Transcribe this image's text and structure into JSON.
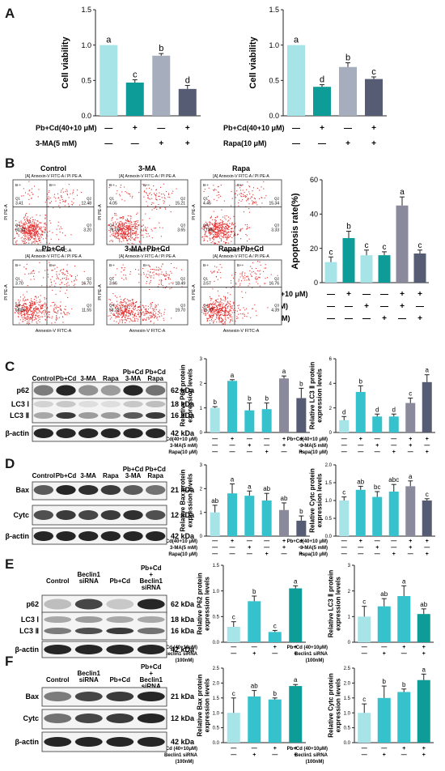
{
  "panels": {
    "A": "A",
    "B": "B",
    "C": "C",
    "D": "D",
    "E": "E",
    "F": "F"
  },
  "colors": {
    "ctrl": "#a6e4e8",
    "teal": "#0d9c97",
    "grey": "#a6adbd",
    "slate": "#565c73",
    "mid": "#35c2cc",
    "purple": "#8a8a9c",
    "scatter": "#e53030",
    "blot_band": "#1a1a1a"
  },
  "treatments": {
    "pbcd": "Pb+Cd(40+10 μM)",
    "ma3": "3-MA(5 mM)",
    "rapa": "Rapa(10 μM)",
    "pbcd_small": "Pb+Cd(40+10 μM)",
    "ma3_small": "3-MA(5 mM)",
    "rapa_small": "Rapa(10 μM)",
    "pbcd_e": "Pb+Cd (40+10μM)",
    "beclin_e": "Beclin1 siRNA",
    "beclin_e_conc": "(100nM)"
  },
  "signs": {
    "plus": "+",
    "minus": "—"
  },
  "flow": {
    "xlabel": "Annexin-V FITC-A",
    "ylabel": "PI PE-A",
    "subtitle": "[A] Annexin-V FITC-A / PI PE-A",
    "quad_labels": {
      "q1": "Q1",
      "q2": "Q2",
      "q3": "Q3",
      "q4": "Q4",
      "bm_plus": "B-+",
      "bp_plus": "B++"
    },
    "plots": [
      {
        "title": "Control",
        "q1": "3.41",
        "q2": "12.48",
        "q3": "3.20",
        "q4": "80.91"
      },
      {
        "title": "3-MA",
        "q1": "4.05",
        "q2": "15.21",
        "q3": "3.65",
        "q4": "76.09"
      },
      {
        "title": "Rapa",
        "q1": "4.46",
        "q2": "15.34",
        "q3": "3.33",
        "q4": "77.88"
      },
      {
        "title": "Pb+Cd",
        "q1": "3.70",
        "q2": "16.70",
        "q3": "11.55",
        "q4": "68.06"
      },
      {
        "title": "3-MA+Pb+Cd",
        "q1": "3.66",
        "q2": "18.49",
        "q3": "19.70",
        "q4": "58.23"
      },
      {
        "title": "Rapa+Pb+Cd",
        "q1": "3.57",
        "q2": "16.76",
        "q3": "4.39",
        "q4": "75.27"
      }
    ]
  },
  "blots": {
    "C": {
      "lanes": [
        "Control",
        "Pb+Cd",
        "3-MA",
        "Rapa",
        "Pb+Cd\n3-MA",
        "Pb+Cd\nRapa"
      ],
      "rows": [
        {
          "label": "p62",
          "kda": "62 kDa"
        },
        {
          "label": "LC3 Ⅰ",
          "kda": "18 kDa"
        },
        {
          "label": "LC3 Ⅱ",
          "kda": "16 kDa"
        },
        {
          "label": "β-actin",
          "kda": "42 kDa"
        }
      ]
    },
    "D": {
      "lanes": [
        "Control",
        "Pb+Cd",
        "3-MA",
        "Rapa",
        "Pb+Cd\n3-MA",
        "Pb+Cd\nRapa"
      ],
      "rows": [
        {
          "label": "Bax",
          "kda": "21 kDa"
        },
        {
          "label": "Cytc",
          "kda": "12 kDa"
        },
        {
          "label": "β-actin",
          "kda": "42 kDa"
        }
      ]
    },
    "E": {
      "lanes": [
        "Control",
        "Beclin1\nsiRNA",
        "Pb+Cd",
        "Pb+Cd\n+\nBeclin1\nsiRNA"
      ],
      "rows": [
        {
          "label": "p62",
          "kda": "62 kDa"
        },
        {
          "label": "LC3 Ⅰ",
          "kda": "18 kDa"
        },
        {
          "label": "LC3 Ⅱ",
          "kda": "16 kDa"
        },
        {
          "label": "β-actin",
          "kda": "42 kDa"
        }
      ]
    },
    "F": {
      "lanes": [
        "Control",
        "Beclin1\nsiRNA",
        "Pb+Cd",
        "Pb+Cd\n+\nBeclin1\nsiRNA"
      ],
      "rows": [
        {
          "label": "Bax",
          "kda": "21 kDa"
        },
        {
          "label": "Cytc",
          "kda": "12 kDa"
        },
        {
          "label": "β-actin",
          "kda": "42 kDa"
        }
      ]
    }
  },
  "chart_data": [
    {
      "id": "A1",
      "type": "bar",
      "ylabel": "Cell viability",
      "ylim": [
        0,
        1.5
      ],
      "ticks": [
        0,
        0.5,
        1.0,
        1.5
      ],
      "values": [
        1.0,
        0.47,
        0.85,
        0.38
      ],
      "errors": [
        0,
        0.04,
        0.03,
        0.05
      ],
      "letters": [
        "a",
        "c",
        "b",
        "d"
      ],
      "colors": [
        "ctrl",
        "teal",
        "grey",
        "slate"
      ],
      "treat_rows": [
        {
          "label": "pbcd",
          "signs": [
            "—",
            "+",
            "—",
            "+"
          ]
        },
        {
          "label": "ma3",
          "signs": [
            "—",
            "—",
            "+",
            "+"
          ]
        }
      ]
    },
    {
      "id": "A2",
      "type": "bar",
      "ylabel": "Cell viability",
      "ylim": [
        0,
        1.5
      ],
      "ticks": [
        0,
        0.5,
        1.0,
        1.5
      ],
      "values": [
        1.0,
        0.41,
        0.69,
        0.52
      ],
      "errors": [
        0,
        0.03,
        0.06,
        0.03
      ],
      "letters": [
        "a",
        "d",
        "b",
        "c"
      ],
      "colors": [
        "ctrl",
        "teal",
        "grey",
        "slate"
      ],
      "treat_rows": [
        {
          "label": "pbcd",
          "signs": [
            "—",
            "+",
            "—",
            "+"
          ]
        },
        {
          "label": "rapa",
          "signs": [
            "—",
            "—",
            "+",
            "+"
          ]
        }
      ]
    },
    {
      "id": "B",
      "type": "bar",
      "ylabel": "Apoptosis rate(%)",
      "ylim": [
        0,
        60
      ],
      "ticks": [
        0,
        20,
        40,
        60
      ],
      "values": [
        12,
        26,
        16,
        16,
        45,
        17
      ],
      "errors": [
        3,
        4,
        3,
        2,
        5,
        2
      ],
      "letters": [
        "c",
        "b",
        "c",
        "c",
        "a",
        "c"
      ],
      "colors": [
        "ctrl",
        "teal",
        "ctrl",
        "teal",
        "purple",
        "slate"
      ],
      "treat_rows": [
        {
          "label": "pbcd",
          "signs": [
            "—",
            "+",
            "—",
            "—",
            "+",
            "+"
          ]
        },
        {
          "label": "ma3",
          "signs": [
            "—",
            "—",
            "+",
            "—",
            "+",
            "—"
          ]
        },
        {
          "label": "rapa",
          "signs": [
            "—",
            "—",
            "—",
            "+",
            "—",
            "+"
          ]
        }
      ]
    },
    {
      "id": "C1",
      "type": "bar",
      "ylabel": "Relative P62 protein\nexpression levels",
      "ylim": [
        0,
        3
      ],
      "ticks": [
        0,
        1,
        2,
        3
      ],
      "values": [
        1.0,
        2.1,
        0.9,
        0.95,
        2.2,
        1.4
      ],
      "errors": [
        0.05,
        0.05,
        0.3,
        0.25,
        0.1,
        0.4
      ],
      "letters": [
        "b",
        "a",
        "b",
        "b",
        "a",
        "b"
      ],
      "colors": [
        "ctrl",
        "mid",
        "mid",
        "mid",
        "purple",
        "slate"
      ],
      "treat_rows": [
        {
          "label": "pbcd_small",
          "signs": [
            "—",
            "+",
            "—",
            "—",
            "+",
            "+"
          ]
        },
        {
          "label": "ma3_small",
          "signs": [
            "—",
            "—",
            "+",
            "—",
            "+",
            "—"
          ]
        },
        {
          "label": "rapa_small",
          "signs": [
            "—",
            "—",
            "—",
            "+",
            "—",
            "+"
          ]
        }
      ]
    },
    {
      "id": "C2",
      "type": "bar",
      "ylabel": "Relative LC3 Ⅱ protein\nexpression levels",
      "ylim": [
        0,
        6
      ],
      "ticks": [
        0,
        2,
        4,
        6
      ],
      "values": [
        1.0,
        3.3,
        1.3,
        1.3,
        2.4,
        4.1
      ],
      "errors": [
        0.3,
        0.5,
        0.2,
        0.2,
        0.4,
        0.6
      ],
      "letters": [
        "d",
        "b",
        "d",
        "d",
        "c",
        "a"
      ],
      "colors": [
        "ctrl",
        "mid",
        "mid",
        "mid",
        "purple",
        "slate"
      ],
      "treat_rows": [
        {
          "label": "pbcd_small",
          "signs": [
            "—",
            "+",
            "—",
            "—",
            "+",
            "+"
          ]
        },
        {
          "label": "ma3_small",
          "signs": [
            "—",
            "—",
            "+",
            "—",
            "+",
            "—"
          ]
        },
        {
          "label": "rapa_small",
          "signs": [
            "—",
            "—",
            "—",
            "+",
            "—",
            "+"
          ]
        }
      ]
    },
    {
      "id": "D1",
      "type": "bar",
      "ylabel": "Relative Bax protein\nexpression levels",
      "ylim": [
        0,
        3
      ],
      "ticks": [
        0,
        1,
        2,
        3
      ],
      "values": [
        1.0,
        1.8,
        1.7,
        1.5,
        1.1,
        0.65
      ],
      "errors": [
        0.3,
        0.4,
        0.2,
        0.3,
        0.3,
        0.2
      ],
      "letters": [
        "ab",
        "a",
        "a",
        "ab",
        "ab",
        "b"
      ],
      "colors": [
        "ctrl",
        "mid",
        "mid",
        "mid",
        "purple",
        "slate"
      ],
      "treat_rows": [
        {
          "label": "pbcd_small",
          "signs": [
            "—",
            "+",
            "—",
            "—",
            "+",
            "+"
          ]
        },
        {
          "label": "ma3_small",
          "signs": [
            "—",
            "—",
            "+",
            "—",
            "+",
            "—"
          ]
        },
        {
          "label": "rapa_small",
          "signs": [
            "—",
            "—",
            "—",
            "+",
            "—",
            "+"
          ]
        }
      ]
    },
    {
      "id": "D2",
      "type": "bar",
      "ylabel": "Relative Cytc protein\nexpression levels",
      "ylim": [
        0,
        2
      ],
      "ticks": [
        0,
        0.5,
        1.0,
        1.5,
        2.0
      ],
      "values": [
        1.0,
        1.3,
        1.1,
        1.25,
        1.4,
        1.0
      ],
      "errors": [
        0.1,
        0.1,
        0.15,
        0.2,
        0.15,
        0.05
      ],
      "letters": [
        "c",
        "ab",
        "bc",
        "abc",
        "a",
        "c"
      ],
      "colors": [
        "ctrl",
        "mid",
        "mid",
        "mid",
        "purple",
        "slate"
      ],
      "treat_rows": [
        {
          "label": "pbcd_small",
          "signs": [
            "—",
            "+",
            "—",
            "—",
            "+",
            "+"
          ]
        },
        {
          "label": "ma3_small",
          "signs": [
            "—",
            "—",
            "+",
            "—",
            "+",
            "—"
          ]
        },
        {
          "label": "rapa_small",
          "signs": [
            "—",
            "—",
            "—",
            "+",
            "—",
            "+"
          ]
        }
      ]
    },
    {
      "id": "E1",
      "type": "bar",
      "ylabel": "Relative P62 protein\nexpression levels",
      "ylim": [
        0,
        1.5
      ],
      "ticks": [
        0,
        0.5,
        1.0,
        1.5
      ],
      "values": [
        0.3,
        0.8,
        0.2,
        1.05
      ],
      "errors": [
        0.1,
        0.1,
        0.03,
        0.05
      ],
      "letters": [
        "c",
        "b",
        "c",
        "a"
      ],
      "colors": [
        "ctrl",
        "mid",
        "mid",
        "teal"
      ],
      "treat_rows": [
        {
          "label": "pbcd_e",
          "signs": [
            "—",
            "—",
            "+",
            "+"
          ]
        },
        {
          "label": "beclin_e",
          "signs": [
            "—",
            "+",
            "—",
            "+"
          ]
        }
      ],
      "treat_extra": "beclin_e_conc"
    },
    {
      "id": "E2",
      "type": "bar",
      "ylabel": "Relative LC3 Ⅱ protein\nexpression levels",
      "ylim": [
        0,
        3
      ],
      "ticks": [
        0,
        1,
        2,
        3
      ],
      "values": [
        1.0,
        1.4,
        1.8,
        1.1
      ],
      "errors": [
        0.4,
        0.3,
        0.4,
        0.2
      ],
      "letters": [
        "c",
        "ab",
        "a",
        "ab"
      ],
      "colors": [
        "ctrl",
        "mid",
        "mid",
        "teal"
      ],
      "treat_rows": [
        {
          "label": "pbcd_e",
          "signs": [
            "—",
            "—",
            "+",
            "+"
          ]
        },
        {
          "label": "beclin_e",
          "signs": [
            "—",
            "+",
            "—",
            "+"
          ]
        }
      ],
      "treat_extra": "beclin_e_conc"
    },
    {
      "id": "F1",
      "type": "bar",
      "ylabel": "Relative Bax protein\nexpression levels",
      "ylim": [
        0,
        2.5
      ],
      "ticks": [
        0,
        0.5,
        1.0,
        1.5,
        2.0,
        2.5
      ],
      "values": [
        1.0,
        1.55,
        1.45,
        1.9
      ],
      "errors": [
        0.5,
        0.2,
        0.05,
        0.05
      ],
      "letters": [
        "c",
        "ab",
        "b",
        "a"
      ],
      "colors": [
        "ctrl",
        "mid",
        "mid",
        "teal"
      ],
      "treat_rows": [
        {
          "label": "pbcd_e",
          "signs": [
            "—",
            "—",
            "+",
            "+"
          ]
        },
        {
          "label": "beclin_e",
          "signs": [
            "—",
            "+",
            "—",
            "+"
          ]
        }
      ],
      "treat_extra": "beclin_e_conc"
    },
    {
      "id": "F2",
      "type": "bar",
      "ylabel": "Relative Cytc protein\nexpression levels",
      "ylim": [
        0,
        2.5
      ],
      "ticks": [
        0,
        0.5,
        1.0,
        1.5,
        2.0,
        2.5
      ],
      "values": [
        1.0,
        1.5,
        1.7,
        2.1
      ],
      "errors": [
        0.3,
        0.4,
        0.1,
        0.2
      ],
      "letters": [
        "c",
        "b",
        "b",
        "a"
      ],
      "colors": [
        "ctrl",
        "mid",
        "mid",
        "teal"
      ],
      "treat_rows": [
        {
          "label": "pbcd_e",
          "signs": [
            "—",
            "—",
            "+",
            "+"
          ]
        },
        {
          "label": "beclin_e",
          "signs": [
            "—",
            "+",
            "—",
            "+"
          ]
        }
      ],
      "treat_extra": "beclin_e_conc"
    }
  ]
}
